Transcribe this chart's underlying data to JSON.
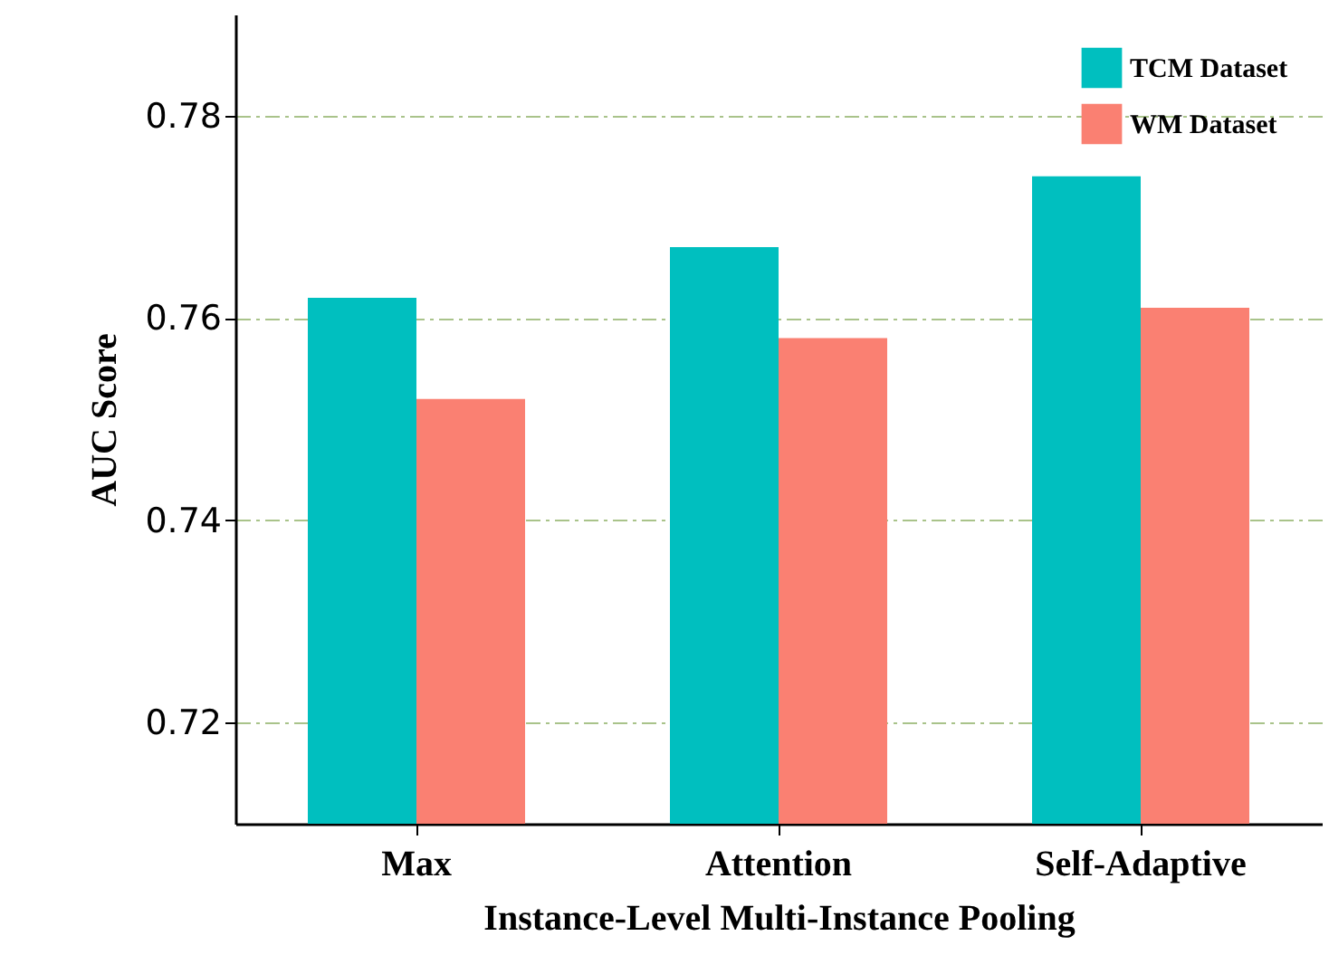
{
  "chart_data": {
    "type": "bar",
    "xlabel": "Instance-Level Multi-Instance Pooling",
    "ylabel": "AUC Score",
    "categories": [
      "Max",
      "Attention",
      "Self-Adaptive"
    ],
    "series": [
      {
        "name": "TCM Dataset",
        "color": "#00bfbf",
        "values": [
          0.762,
          0.767,
          0.774
        ]
      },
      {
        "name": "WM Dataset",
        "color": "#fa8072",
        "values": [
          0.752,
          0.758,
          0.761
        ]
      }
    ],
    "ylim": [
      0.71,
      0.79
    ],
    "yticks": [
      0.72,
      0.74,
      0.76,
      0.78
    ],
    "grid": "y",
    "legend": "top right"
  }
}
